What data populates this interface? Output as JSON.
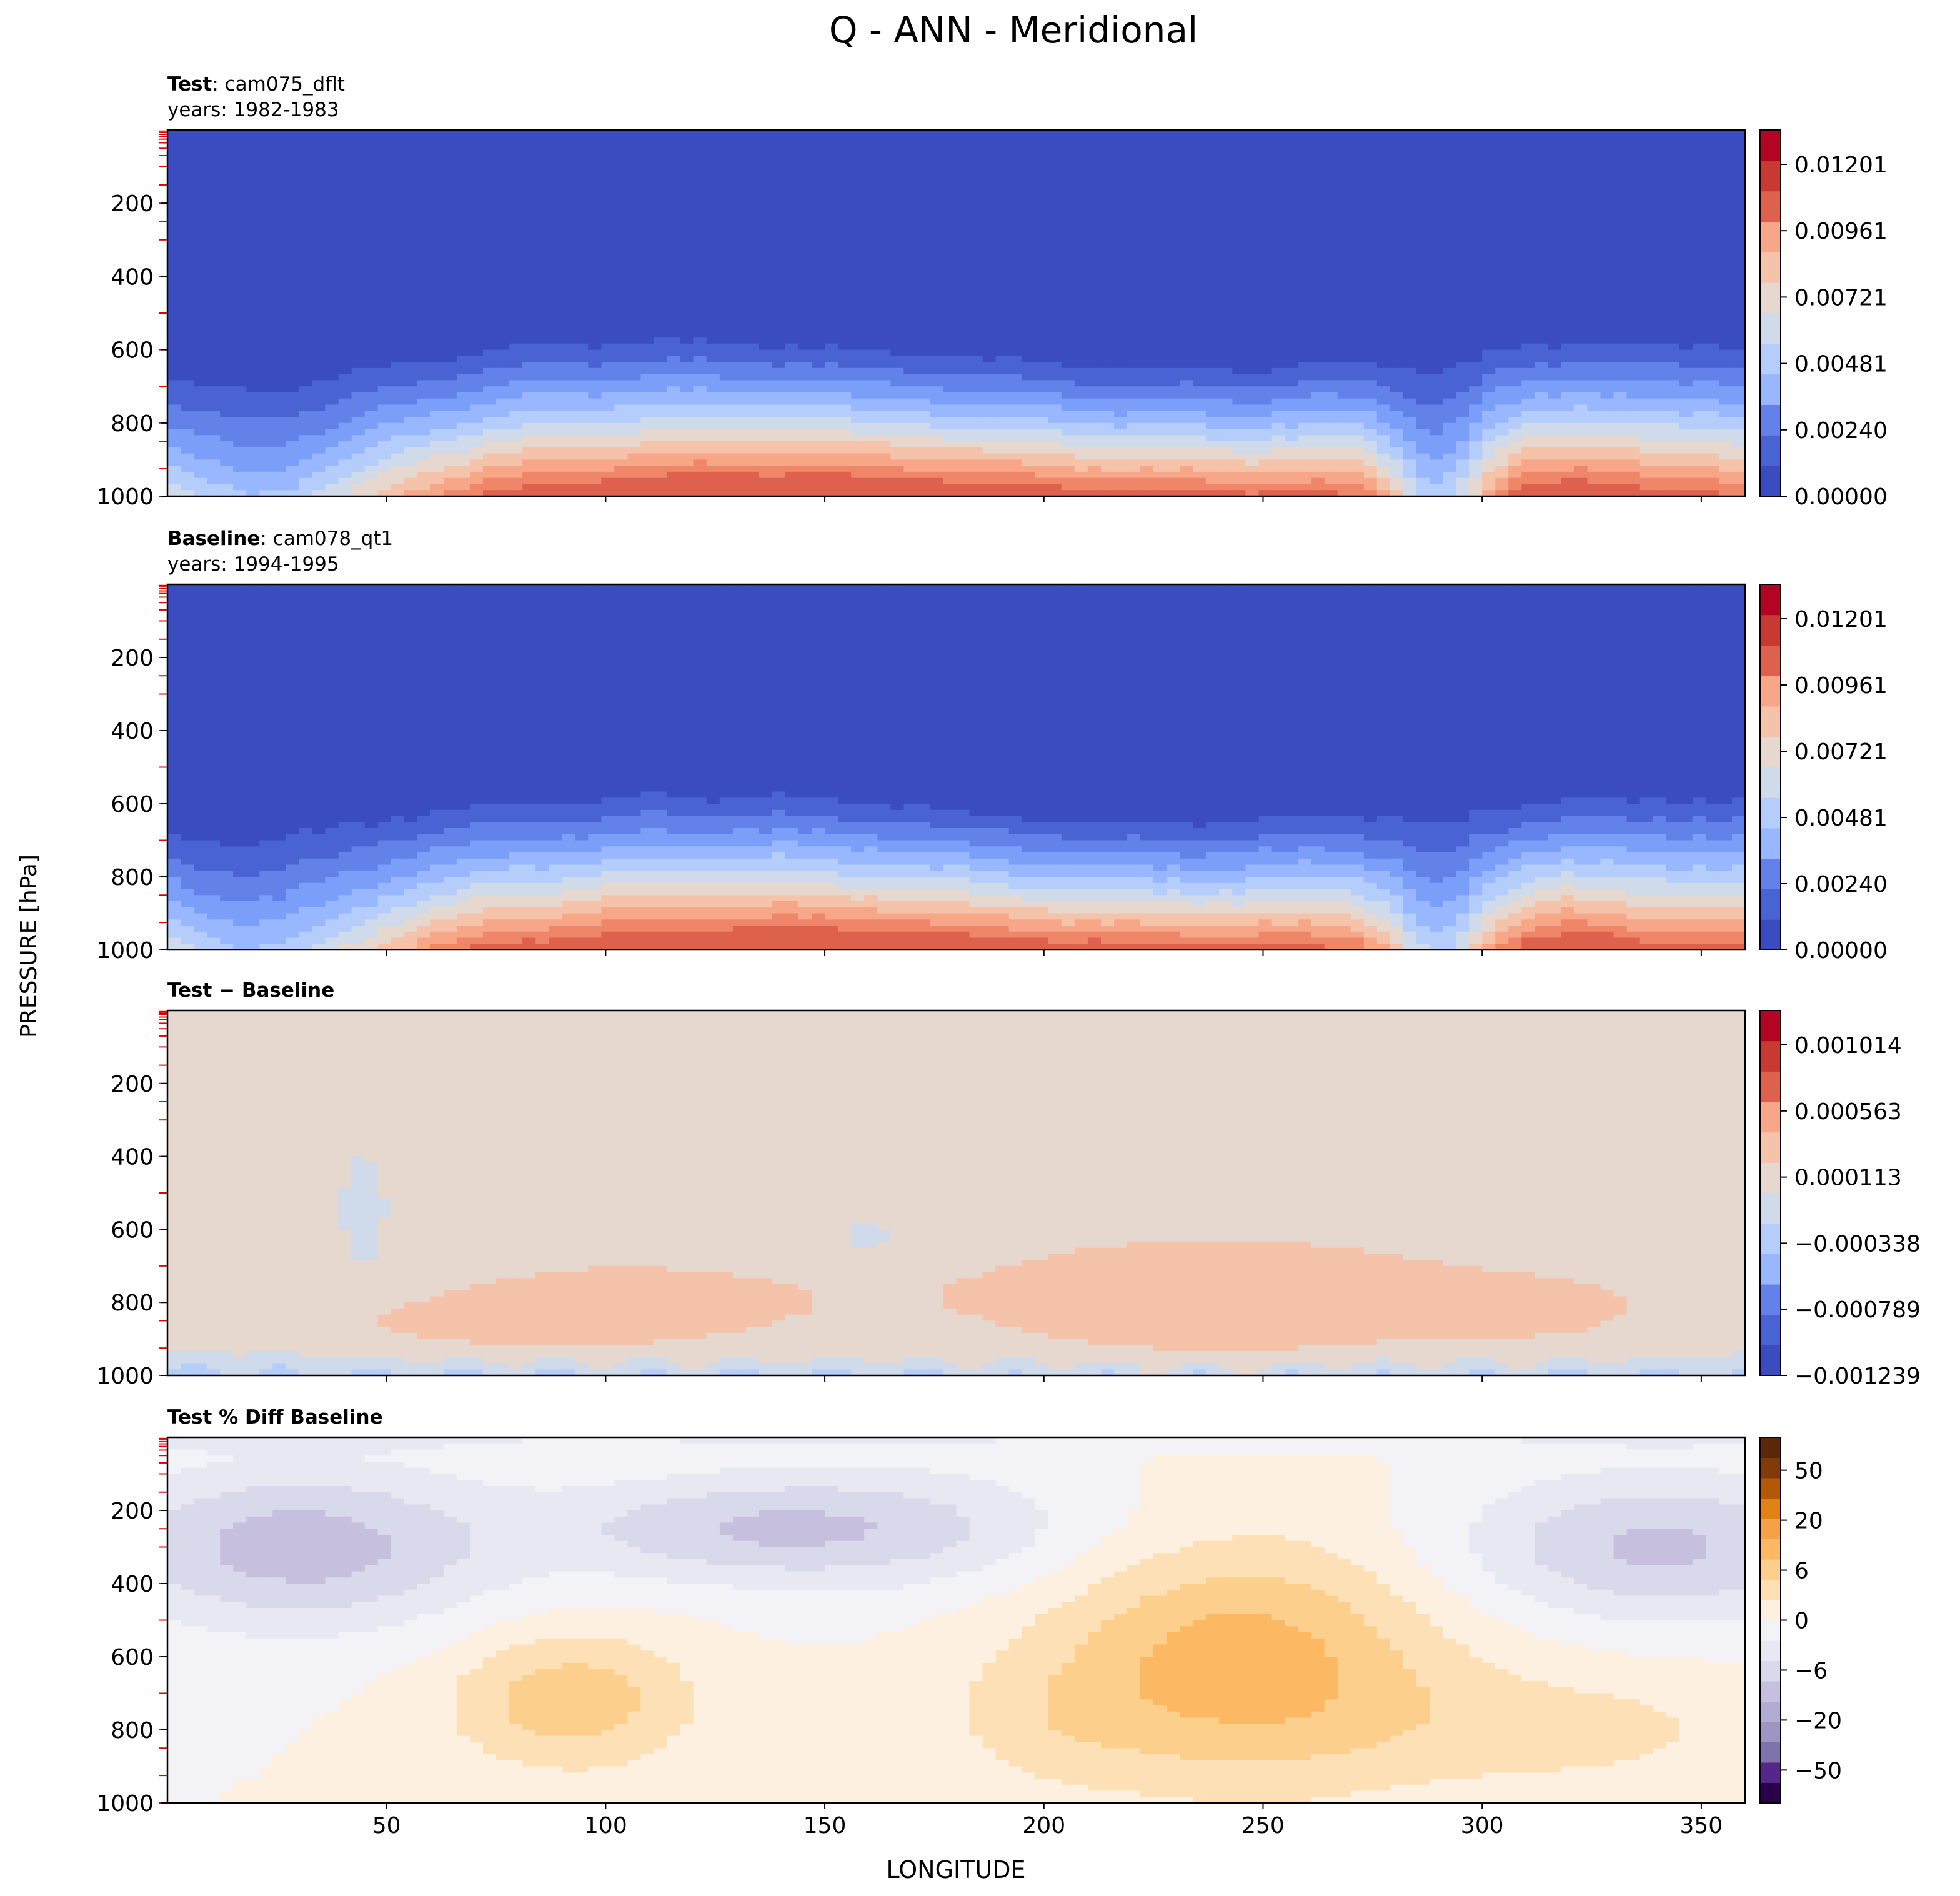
{
  "figure": {
    "suptitle": "Q - ANN - Meridional",
    "ylabel": "PRESSURE [hPa]",
    "xlabel": "LONGITUDE"
  },
  "chart_data": [
    {
      "type": "heatmap",
      "panel": "test",
      "title_bold": "Test",
      "title_rest": ": cam075_dflt",
      "subtitle": "years: 1982-1983",
      "xlim": [
        0,
        360
      ],
      "ylim": [
        1000,
        0
      ],
      "x_ticks": [
        "50",
        "100",
        "150",
        "200",
        "250",
        "300",
        "350"
      ],
      "x_tick_labels_visible": false,
      "y_ticks": [
        "200",
        "400",
        "600",
        "800",
        "1000"
      ],
      "colormap": "coolwarm",
      "colorbar_ticks": [
        "0.01201",
        "0.00961",
        "0.00721",
        "0.00481",
        "0.00240",
        "0.00000"
      ],
      "colorbar_levels": 12,
      "pattern": "moist_profile",
      "colors": {
        "levels": [
          "#3b4cc0",
          "#4a63d3",
          "#6282ea",
          "#7b9ff9",
          "#98b7fe",
          "#b4cdfa",
          "#cfdaea",
          "#e6d7cf",
          "#f5c2aa",
          "#f7a688",
          "#ef8669",
          "#de614d",
          "#c73a32",
          "#b40426"
        ]
      }
    },
    {
      "type": "heatmap",
      "panel": "baseline",
      "title_bold": "Baseline",
      "title_rest": ": cam078_qt1",
      "subtitle": "years: 1994-1995",
      "xlim": [
        0,
        360
      ],
      "ylim": [
        1000,
        0
      ],
      "x_ticks": [
        "50",
        "100",
        "150",
        "200",
        "250",
        "300",
        "350"
      ],
      "x_tick_labels_visible": false,
      "y_ticks": [
        "200",
        "400",
        "600",
        "800",
        "1000"
      ],
      "colormap": "coolwarm",
      "colorbar_ticks": [
        "0.01201",
        "0.00961",
        "0.00721",
        "0.00481",
        "0.00240",
        "0.00000"
      ],
      "colorbar_levels": 12,
      "pattern": "moist_profile"
    },
    {
      "type": "heatmap",
      "panel": "diff",
      "title_bold": "Test − Baseline",
      "title_rest": "",
      "subtitle": "",
      "xlim": [
        0,
        360
      ],
      "ylim": [
        1000,
        0
      ],
      "x_ticks": [
        "50",
        "100",
        "150",
        "200",
        "250",
        "300",
        "350"
      ],
      "x_tick_labels_visible": false,
      "y_ticks": [
        "200",
        "400",
        "600",
        "800",
        "1000"
      ],
      "colormap": "coolwarm",
      "colorbar_ticks": [
        "0.001014",
        "0.000563",
        "0.000113",
        "−0.000338",
        "−0.000789",
        "−0.001239"
      ],
      "colorbar_levels": 12,
      "pattern": "difference"
    },
    {
      "type": "heatmap",
      "panel": "pctdiff",
      "title_bold": "Test % Diff Baseline",
      "title_rest": "",
      "subtitle": "",
      "xlim": [
        0,
        360
      ],
      "ylim": [
        1000,
        0
      ],
      "x_ticks": [
        "50",
        "100",
        "150",
        "200",
        "250",
        "300",
        "350"
      ],
      "x_tick_labels_visible": true,
      "y_ticks": [
        "200",
        "400",
        "600",
        "800",
        "1000"
      ],
      "colormap": "PuOr_r",
      "colorbar_ticks": [
        "50",
        "20",
        "6",
        "0",
        "−6",
        "−20",
        "−50"
      ],
      "colorbar_levels": 18,
      "pattern": "percent_difference",
      "colors": {
        "levels": [
          "#2d004b",
          "#542788",
          "#8073ac",
          "#9f95c3",
          "#b2abd2",
          "#c6c0de",
          "#d8daeb",
          "#e8e8f2",
          "#f2f2f7",
          "#fdf0e0",
          "#fee0b6",
          "#fdcf8c",
          "#fdb863",
          "#f4a245",
          "#e08214",
          "#b35806",
          "#7f3b08",
          "#5a2806"
        ]
      }
    }
  ]
}
